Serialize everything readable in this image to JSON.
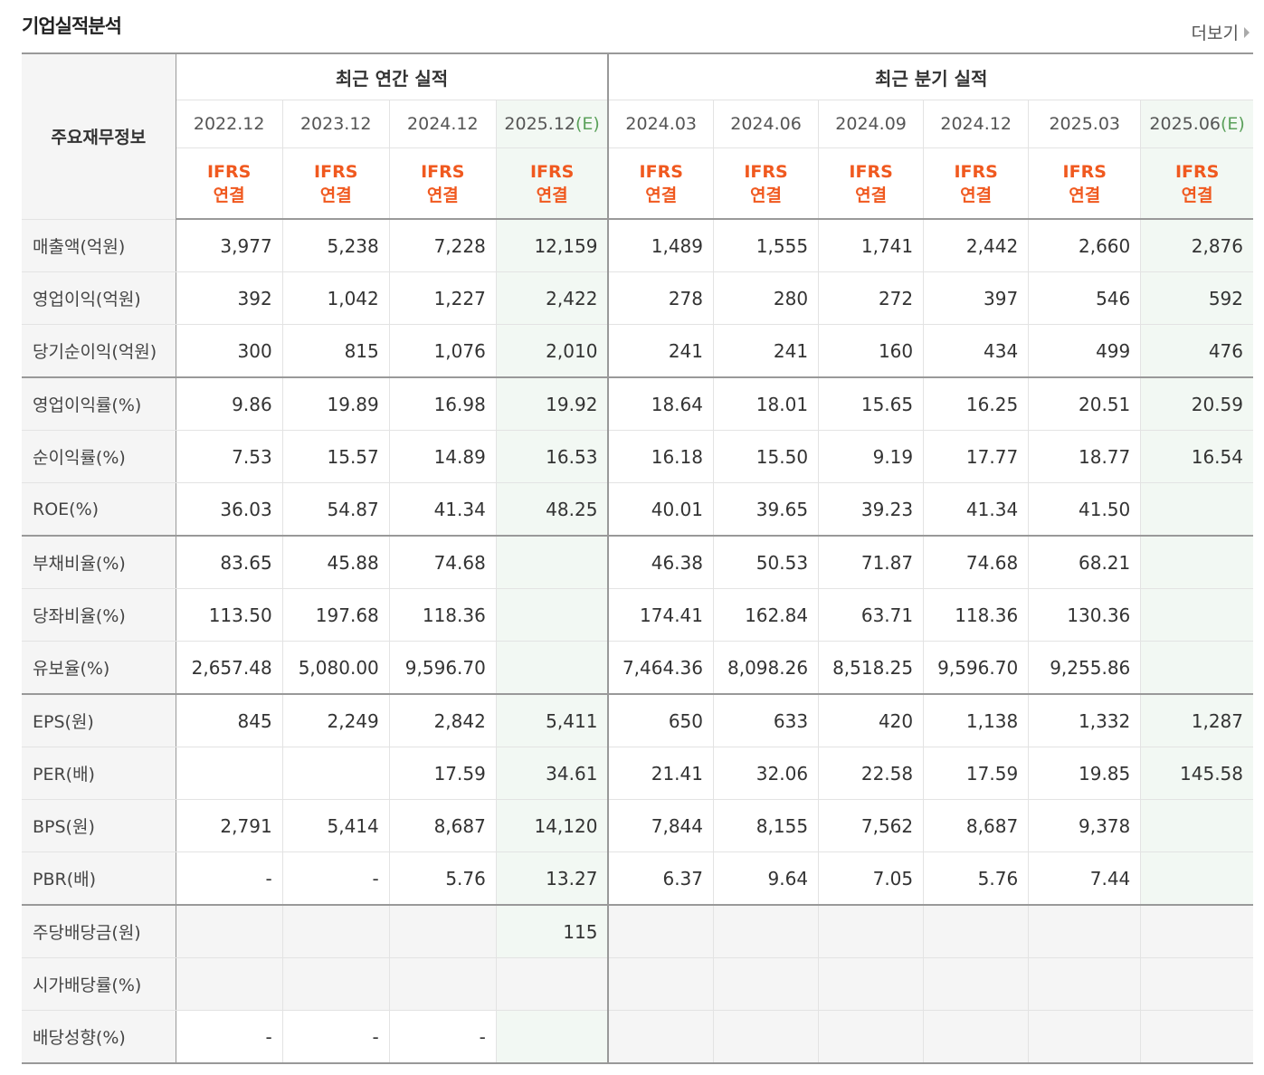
{
  "title": "기업실적분석",
  "more_label": "더보기",
  "row_header": "주요재무정보",
  "groups": [
    "최근 연간 실적",
    "최근 분기 실적"
  ],
  "periods": [
    {
      "label": "2022.12",
      "est": ""
    },
    {
      "label": "2023.12",
      "est": ""
    },
    {
      "label": "2024.12",
      "est": ""
    },
    {
      "label": "2025.12",
      "est": "(E)"
    },
    {
      "label": "2024.03",
      "est": ""
    },
    {
      "label": "2024.06",
      "est": ""
    },
    {
      "label": "2024.09",
      "est": ""
    },
    {
      "label": "2024.12",
      "est": ""
    },
    {
      "label": "2025.03",
      "est": ""
    },
    {
      "label": "2025.06",
      "est": "(E)"
    }
  ],
  "ifrs": {
    "line1": "IFRS",
    "line2": "연결"
  },
  "rows": [
    {
      "label": "매출액(억원)",
      "values": [
        "3,977",
        "5,238",
        "7,228",
        "12,159",
        "1,489",
        "1,555",
        "1,741",
        "2,442",
        "2,660",
        "2,876"
      ]
    },
    {
      "label": "영업이익(억원)",
      "values": [
        "392",
        "1,042",
        "1,227",
        "2,422",
        "278",
        "280",
        "272",
        "397",
        "546",
        "592"
      ]
    },
    {
      "label": "당기순이익(억원)",
      "values": [
        "300",
        "815",
        "1,076",
        "2,010",
        "241",
        "241",
        "160",
        "434",
        "499",
        "476"
      ]
    },
    {
      "label": "영업이익률(%)",
      "values": [
        "9.86",
        "19.89",
        "16.98",
        "19.92",
        "18.64",
        "18.01",
        "15.65",
        "16.25",
        "20.51",
        "20.59"
      ]
    },
    {
      "label": "순이익률(%)",
      "values": [
        "7.53",
        "15.57",
        "14.89",
        "16.53",
        "16.18",
        "15.50",
        "9.19",
        "17.77",
        "18.77",
        "16.54"
      ]
    },
    {
      "label": "ROE(%)",
      "values": [
        "36.03",
        "54.87",
        "41.34",
        "48.25",
        "40.01",
        "39.65",
        "39.23",
        "41.34",
        "41.50",
        ""
      ]
    },
    {
      "label": "부채비율(%)",
      "values": [
        "83.65",
        "45.88",
        "74.68",
        "",
        "46.38",
        "50.53",
        "71.87",
        "74.68",
        "68.21",
        ""
      ]
    },
    {
      "label": "당좌비율(%)",
      "values": [
        "113.50",
        "197.68",
        "118.36",
        "",
        "174.41",
        "162.84",
        "63.71",
        "118.36",
        "130.36",
        ""
      ]
    },
    {
      "label": "유보율(%)",
      "values": [
        "2,657.48",
        "5,080.00",
        "9,596.70",
        "",
        "7,464.36",
        "8,098.26",
        "8,518.25",
        "9,596.70",
        "9,255.86",
        ""
      ]
    },
    {
      "label": "EPS(원)",
      "values": [
        "845",
        "2,249",
        "2,842",
        "5,411",
        "650",
        "633",
        "420",
        "1,138",
        "1,332",
        "1,287"
      ]
    },
    {
      "label": "PER(배)",
      "values": [
        "",
        "",
        "17.59",
        "34.61",
        "21.41",
        "32.06",
        "22.58",
        "17.59",
        "19.85",
        "145.58"
      ]
    },
    {
      "label": "BPS(원)",
      "values": [
        "2,791",
        "5,414",
        "8,687",
        "14,120",
        "7,844",
        "8,155",
        "7,562",
        "8,687",
        "9,378",
        ""
      ]
    },
    {
      "label": "PBR(배)",
      "values": [
        "-",
        "-",
        "5.76",
        "13.27",
        "6.37",
        "9.64",
        "7.05",
        "5.76",
        "7.44",
        ""
      ]
    },
    {
      "label": "주당배당금(원)",
      "values": [
        "",
        "",
        "",
        "115",
        "",
        "",
        "",
        "",
        "",
        ""
      ]
    },
    {
      "label": "시가배당률(%)",
      "values": [
        "",
        "",
        "",
        "",
        "",
        "",
        "",
        "",
        "",
        ""
      ]
    },
    {
      "label": "배당성향(%)",
      "values": [
        "-",
        "-",
        "-",
        "",
        "",
        "",
        "",
        "",
        "",
        ""
      ]
    }
  ]
}
